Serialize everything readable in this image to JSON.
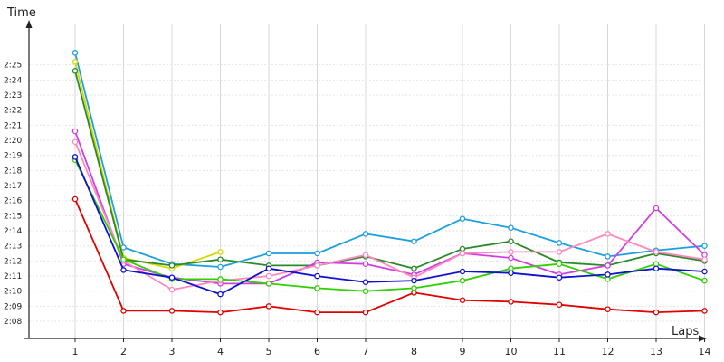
{
  "chart_data": {
    "type": "line",
    "ylabel": "Time",
    "xlabel": "Laps",
    "x": [
      1,
      2,
      3,
      4,
      5,
      6,
      7,
      8,
      9,
      10,
      11,
      12,
      13,
      14
    ],
    "y_ticks": [
      "2:08",
      "2:09",
      "2:10",
      "2:11",
      "2:12",
      "2:13",
      "2:14",
      "2:15",
      "2:16",
      "2:17",
      "2:18",
      "2:19",
      "2:20",
      "2:21",
      "2:22",
      "2:23",
      "2:24",
      "2:25"
    ],
    "ylim_seconds": [
      127,
      146
    ],
    "grid": true,
    "series": [
      {
        "color": "#e00000",
        "values": [
          "2:16.1",
          "2:08.7",
          "2:08.7",
          "2:08.6",
          "2:09.0",
          "2:08.6",
          "2:08.6",
          "2:09.9",
          "2:09.4",
          "2:09.3",
          "2:09.1",
          "2:08.8",
          "2:08.6",
          "2:08.7"
        ]
      },
      {
        "color": "#1e9fe0",
        "values": [
          "2:25.8",
          "2:12.9",
          "2:11.8",
          "2:11.6",
          "2:12.5",
          "2:12.5",
          "2:13.8",
          "2:13.3",
          "2:14.8",
          "2:14.2",
          "2:13.2",
          "2:12.3",
          "2:12.7",
          "2:13.0"
        ]
      },
      {
        "color": "#d8d800",
        "values": [
          "2:25.2",
          "2:12.2",
          "2:11.5",
          "2:12.6",
          null,
          null,
          null,
          null,
          null,
          null,
          null,
          null,
          null,
          null
        ]
      },
      {
        "color": "#2a8a2a",
        "values": [
          "2:24.6",
          "2:12.1",
          "2:11.7",
          "2:12.1",
          "2:11.7",
          "2:11.7",
          "2:12.3",
          "2:11.5",
          "2:12.8",
          "2:13.3",
          "2:11.9",
          "2:11.7",
          "2:12.5",
          "2:12.0"
        ]
      },
      {
        "color": "#d040e0",
        "values": [
          "2:20.6",
          "2:11.8",
          "2:10.9",
          "2:10.5",
          "2:10.5",
          "2:11.9",
          "2:11.8",
          "2:11.1",
          "2:12.5",
          "2:12.2",
          "2:11.1",
          "2:11.7",
          "2:15.5",
          "2:12.4"
        ]
      },
      {
        "color": "#ff88c0",
        "values": [
          "2:19.9",
          "2:12.0",
          "2:10.1",
          "2:10.7",
          "2:11.0",
          "2:11.7",
          "2:12.4",
          "2:10.9",
          "2:12.5",
          "2:12.6",
          "2:12.6",
          "2:13.8",
          "2:12.6",
          "2:12.1"
        ]
      },
      {
        "color": "#30d000",
        "values": [
          "2:18.7",
          "2:12.1",
          "2:10.8",
          "2:10.8",
          "2:10.5",
          "2:10.2",
          "2:10.0",
          "2:10.2",
          "2:10.7",
          "2:11.5",
          "2:11.8",
          "2:10.8",
          "2:11.8",
          "2:10.7"
        ]
      },
      {
        "color": "#1010d0",
        "values": [
          "2:18.9",
          "2:11.4",
          "2:10.9",
          "2:09.8",
          "2:11.5",
          "2:11.0",
          "2:10.6",
          "2:10.7",
          "2:11.3",
          "2:11.2",
          "2:10.9",
          "2:11.1",
          "2:11.5",
          "2:11.3"
        ]
      }
    ]
  }
}
